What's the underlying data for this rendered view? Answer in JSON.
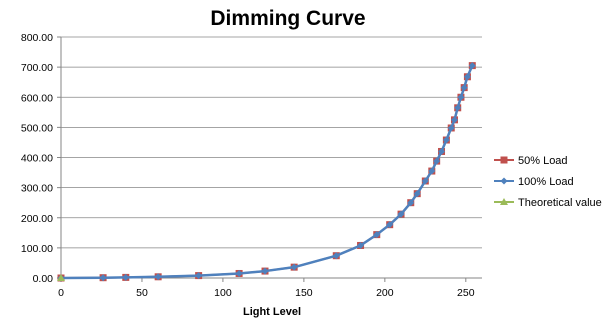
{
  "chart_data": {
    "type": "line",
    "title": "Dimming Curve",
    "xlabel": "Light Level",
    "ylabel": "",
    "xlim": [
      0,
      260
    ],
    "ylim": [
      0,
      800
    ],
    "x_ticks": [
      "0",
      "50",
      "100",
      "150",
      "200",
      "250"
    ],
    "y_ticks": [
      "0.00",
      "100.00",
      "200.00",
      "300.00",
      "400.00",
      "500.00",
      "600.00",
      "700.00",
      "800.00"
    ],
    "grid": "horizontal",
    "legend_position": "right",
    "series": [
      {
        "name": "50% Load",
        "color": "#C0504D",
        "marker": "square",
        "x": [
          0,
          26,
          40,
          60,
          85,
          110,
          126,
          144,
          170,
          185,
          195,
          203,
          210,
          216,
          220,
          225,
          229,
          232,
          235,
          238,
          241,
          243,
          245,
          247,
          249,
          251,
          254
        ],
        "y": [
          0,
          1,
          2,
          4,
          8,
          15,
          23,
          36,
          74,
          108,
          144,
          177,
          212,
          250,
          280,
          322,
          355,
          388,
          420,
          458,
          498,
          525,
          565,
          600,
          632,
          668,
          705
        ]
      },
      {
        "name": "100% Load",
        "color": "#4F81BD",
        "marker": "diamond",
        "x": [
          0,
          26,
          40,
          60,
          85,
          110,
          126,
          144,
          170,
          185,
          195,
          203,
          210,
          216,
          220,
          225,
          229,
          232,
          235,
          238,
          241,
          243,
          245,
          247,
          249,
          251,
          254
        ],
        "y": [
          0,
          1,
          2,
          4,
          8,
          15,
          23,
          36,
          74,
          108,
          144,
          177,
          212,
          250,
          280,
          322,
          355,
          388,
          420,
          458,
          498,
          525,
          565,
          600,
          632,
          668,
          705
        ]
      },
      {
        "name": "Theoretical value",
        "color": "#9BBB59",
        "marker": "triangle",
        "x": [
          0
        ],
        "y": [
          0
        ]
      }
    ]
  }
}
